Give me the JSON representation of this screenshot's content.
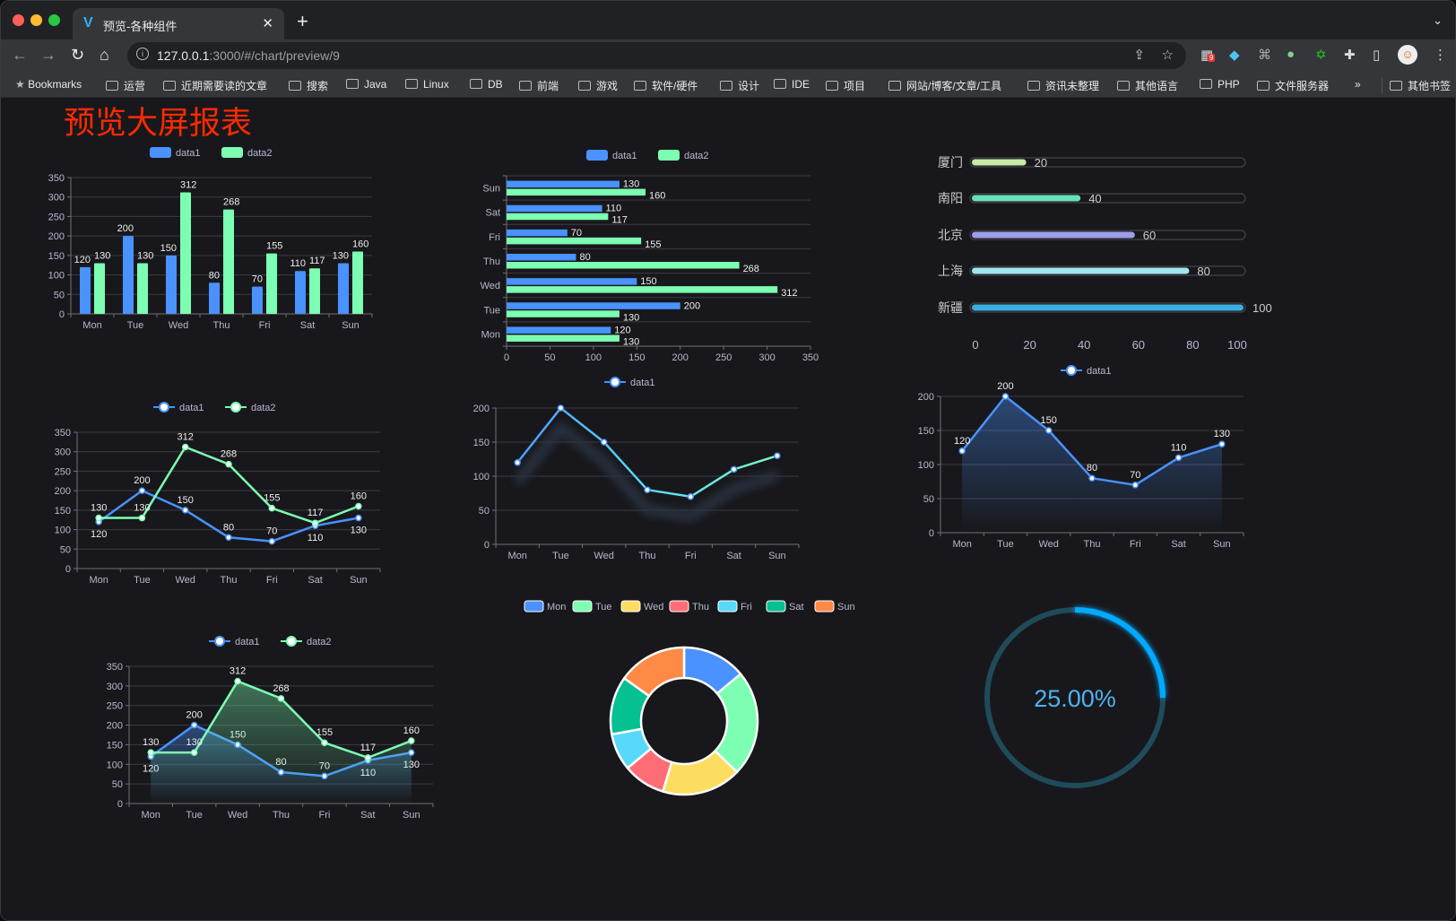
{
  "browser": {
    "tab_title": "预览-各种组件",
    "url_host": "127.0.0.1",
    "url_rest": ":3000/#/chart/preview/9",
    "extension_badge": "9",
    "bookmarks": [
      "Bookmarks",
      "运营",
      "近期需要读的文章",
      "搜索",
      "Java",
      "Linux",
      "DB",
      "前端",
      "游戏",
      "软件/硬件",
      "设计",
      "IDE",
      "项目",
      "网站/博客/文章/工具",
      "资讯未整理",
      "其他语言",
      "PHP",
      "文件服务器"
    ],
    "overflow": "»",
    "other_bookmarks": "其他书签"
  },
  "page": {
    "title": "预览大屏报表"
  },
  "colors": {
    "data1": "#4992ff",
    "data2": "#7cffb2",
    "title": "#ff2a00",
    "gauge": "#00aaff",
    "gauge_track": "#1f4b5a"
  },
  "chart_data": [
    {
      "type": "bar",
      "legend": [
        "data1",
        "data2"
      ],
      "categories": [
        "Mon",
        "Tue",
        "Wed",
        "Thu",
        "Fri",
        "Sat",
        "Sun"
      ],
      "series": [
        {
          "name": "data1",
          "values": [
            120,
            200,
            150,
            80,
            70,
            110,
            130
          ]
        },
        {
          "name": "data2",
          "values": [
            130,
            130,
            312,
            268,
            155,
            117,
            160
          ]
        }
      ],
      "ylim": [
        0,
        350
      ],
      "yticks": [
        0,
        50,
        100,
        150,
        200,
        250,
        300,
        350
      ],
      "grid": true,
      "legend_position": "top"
    },
    {
      "type": "bar",
      "orientation": "horizontal",
      "legend": [
        "data1",
        "data2"
      ],
      "categories": [
        "Mon",
        "Tue",
        "Wed",
        "Thu",
        "Fri",
        "Sat",
        "Sun"
      ],
      "series": [
        {
          "name": "data1",
          "values": [
            120,
            200,
            150,
            80,
            70,
            110,
            130
          ]
        },
        {
          "name": "data2",
          "values": [
            130,
            130,
            312,
            268,
            155,
            117,
            160
          ]
        }
      ],
      "xlim": [
        0,
        350
      ],
      "xticks": [
        0,
        50,
        100,
        150,
        200,
        250,
        300,
        350
      ],
      "grid": true,
      "legend_position": "top"
    },
    {
      "type": "bar",
      "orientation": "horizontal",
      "style": "progress",
      "categories": [
        "厦门",
        "南阳",
        "北京",
        "上海",
        "新疆"
      ],
      "values": [
        20,
        40,
        60,
        80,
        100
      ],
      "colors": [
        "#c6eca8",
        "#67e0b7",
        "#9d9eeb",
        "#9de8ec",
        "#3aaee0"
      ],
      "xlim": [
        0,
        100
      ],
      "xticks": [
        0,
        20,
        40,
        60,
        80,
        100
      ]
    },
    {
      "type": "line",
      "legend": [
        "data1",
        "data2"
      ],
      "categories": [
        "Mon",
        "Tue",
        "Wed",
        "Thu",
        "Fri",
        "Sat",
        "Sun"
      ],
      "series": [
        {
          "name": "data1",
          "values": [
            120,
            200,
            150,
            80,
            70,
            110,
            130
          ]
        },
        {
          "name": "data2",
          "values": [
            130,
            130,
            312,
            268,
            155,
            117,
            160
          ]
        }
      ],
      "ylim": [
        0,
        350
      ],
      "yticks": [
        0,
        50,
        100,
        150,
        200,
        250,
        300,
        350
      ],
      "grid": true,
      "labels": true
    },
    {
      "type": "line",
      "legend": [
        "data1"
      ],
      "categories": [
        "Mon",
        "Tue",
        "Wed",
        "Thu",
        "Fri",
        "Sat",
        "Sun"
      ],
      "series": [
        {
          "name": "data1",
          "values": [
            120,
            200,
            150,
            80,
            70,
            110,
            130
          ]
        }
      ],
      "ylim": [
        0,
        200
      ],
      "yticks": [
        0,
        50,
        100,
        150,
        200
      ],
      "grid": true,
      "labels": false,
      "gradient_line": true
    },
    {
      "type": "area",
      "legend": [
        "data1"
      ],
      "categories": [
        "Mon",
        "Tue",
        "Wed",
        "Thu",
        "Fri",
        "Sat",
        "Sun"
      ],
      "series": [
        {
          "name": "data1",
          "values": [
            120,
            200,
            150,
            80,
            70,
            110,
            130
          ]
        }
      ],
      "ylim": [
        0,
        200
      ],
      "yticks": [
        0,
        50,
        100,
        150,
        200
      ],
      "grid": true,
      "labels": true
    },
    {
      "type": "area",
      "legend": [
        "data1",
        "data2"
      ],
      "categories": [
        "Mon",
        "Tue",
        "Wed",
        "Thu",
        "Fri",
        "Sat",
        "Sun"
      ],
      "series": [
        {
          "name": "data1",
          "values": [
            120,
            200,
            150,
            80,
            70,
            110,
            130
          ]
        },
        {
          "name": "data2",
          "values": [
            130,
            130,
            312,
            268,
            155,
            117,
            160
          ]
        }
      ],
      "ylim": [
        0,
        350
      ],
      "yticks": [
        0,
        50,
        100,
        150,
        200,
        250,
        300,
        350
      ],
      "grid": true,
      "labels": true
    },
    {
      "type": "pie",
      "style": "donut",
      "categories": [
        "Mon",
        "Tue",
        "Wed",
        "Thu",
        "Fri",
        "Sat",
        "Sun"
      ],
      "values": [
        120,
        200,
        150,
        80,
        70,
        110,
        130
      ],
      "colors": [
        "#4992ff",
        "#7cffb2",
        "#fddd60",
        "#ff6e76",
        "#58d9f9",
        "#05c091",
        "#ff8a45"
      ]
    },
    {
      "type": "gauge",
      "value": 25,
      "label": "25.00%"
    }
  ]
}
